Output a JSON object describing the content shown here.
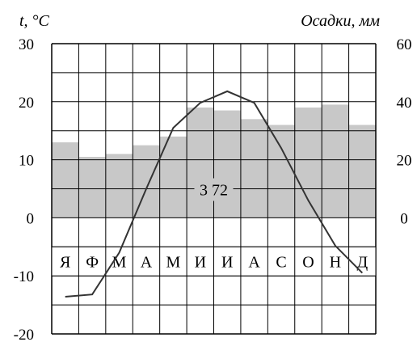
{
  "chart_data": {
    "type": "climatogram",
    "months": [
      "Я",
      "Ф",
      "М",
      "А",
      "М",
      "И",
      "И",
      "А",
      "С",
      "О",
      "Н",
      "Д"
    ],
    "temperature": [
      -13.6,
      -13.2,
      -6,
      5,
      15.5,
      19.8,
      21.8,
      19.8,
      12,
      3,
      -4.8,
      -9.5
    ],
    "precipitation": [
      26,
      21,
      22,
      25,
      28,
      38,
      37,
      34,
      32,
      38,
      39,
      32
    ],
    "temperature_axis": {
      "label": "t, °C",
      "ticks": [
        "30",
        "20",
        "10",
        "0",
        "-10",
        "-20"
      ],
      "range": [
        -20,
        30
      ]
    },
    "precipitation_axis": {
      "label": "Осадки, мм",
      "ticks": [
        "60",
        "40",
        "20",
        "0"
      ],
      "range": [
        0,
        60
      ]
    },
    "annual_precipitation": "3 72",
    "colors": {
      "bars": "#c8c8c8",
      "line": "#333333",
      "grid": "#000000"
    }
  }
}
